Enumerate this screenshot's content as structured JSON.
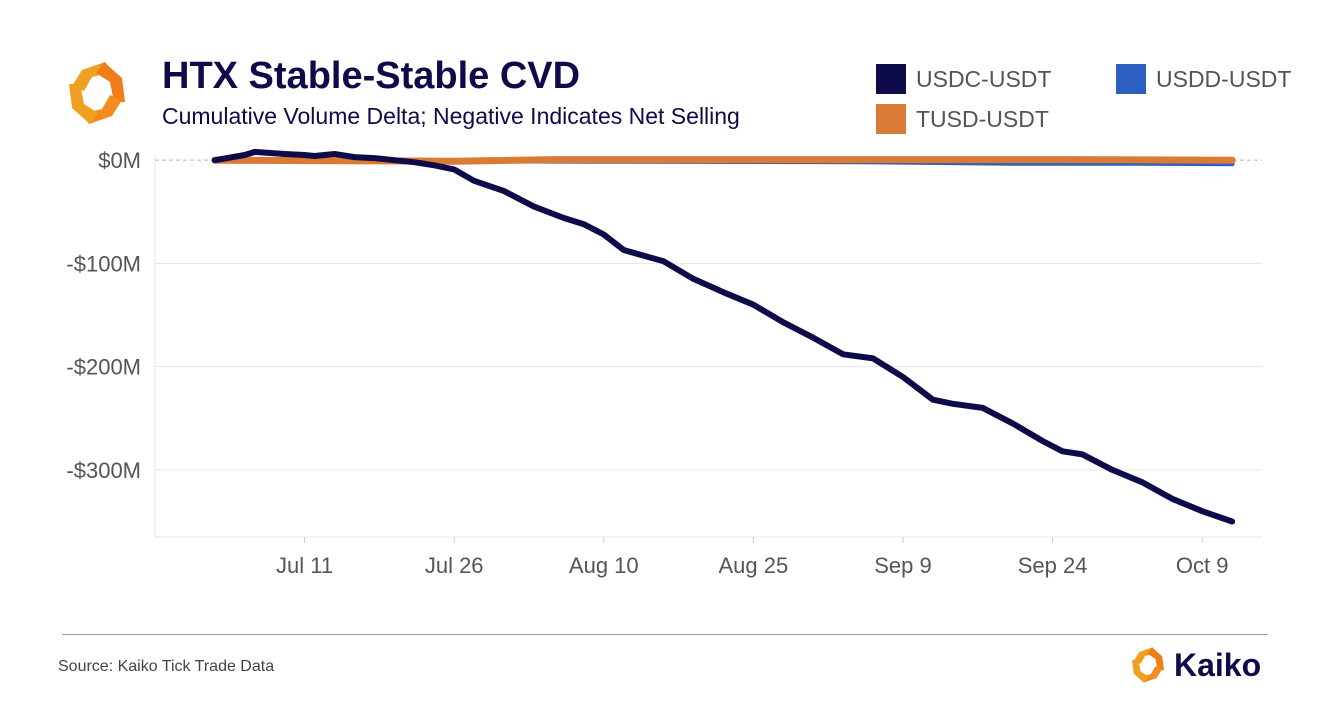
{
  "header": {
    "title": "HTX Stable-Stable CVD",
    "subtitle": "Cumulative Volume Delta; Negative Indicates Net Selling"
  },
  "legend": {
    "items": [
      {
        "label": "USDC-USDT",
        "color": "#0d0b4a"
      },
      {
        "label": "USDD-USDT",
        "color": "#2c5fbf"
      },
      {
        "label": "TUSD-USDT",
        "color": "#d97a35"
      }
    ]
  },
  "footer": {
    "source": "Source: Kaiko Tick Trade Data",
    "brand": "Kaiko",
    "logo_icon": "kaiko-logo-icon"
  },
  "chart_data": {
    "type": "line",
    "y_unit": "millions USD",
    "ylim": [
      -365,
      5
    ],
    "xlim": [
      "2023-06-26",
      "2023-10-15"
    ],
    "grid": true,
    "legend_position": "top-right",
    "y_ticks": [
      {
        "value": 0,
        "label": "$0M"
      },
      {
        "value": -100,
        "label": "-$100M"
      },
      {
        "value": -200,
        "label": "-$200M"
      },
      {
        "value": -300,
        "label": "-$300M"
      }
    ],
    "x_ticks": [
      {
        "date": "2023-07-11",
        "label": "Jul 11"
      },
      {
        "date": "2023-07-26",
        "label": "Jul 26"
      },
      {
        "date": "2023-08-10",
        "label": "Aug 10"
      },
      {
        "date": "2023-08-25",
        "label": "Aug 25"
      },
      {
        "date": "2023-09-09",
        "label": "Sep 9"
      },
      {
        "date": "2023-09-24",
        "label": "Sep 24"
      },
      {
        "date": "2023-10-09",
        "label": "Oct 9"
      }
    ],
    "series": [
      {
        "name": "USDD-USDT",
        "color": "#2c5fbf",
        "x": [
          "2023-07-02",
          "2023-07-20",
          "2023-08-10",
          "2023-09-05",
          "2023-09-20",
          "2023-10-03",
          "2023-10-12"
        ],
        "y": [
          0,
          -0.5,
          -1,
          -1.5,
          -3,
          -3,
          -3.5
        ]
      },
      {
        "name": "TUSD-USDT",
        "color": "#d97a35",
        "x": [
          "2023-07-02",
          "2023-07-15",
          "2023-07-26",
          "2023-08-05",
          "2023-08-20",
          "2023-09-10",
          "2023-09-25",
          "2023-10-12"
        ],
        "y": [
          0,
          -0.5,
          -1,
          0.5,
          0.5,
          0.5,
          0.5,
          0
        ]
      },
      {
        "name": "USDC-USDT",
        "color": "#0d0b4a",
        "x": [
          "2023-07-02",
          "2023-07-05",
          "2023-07-06",
          "2023-07-09",
          "2023-07-11",
          "2023-07-12",
          "2023-07-14",
          "2023-07-16",
          "2023-07-18",
          "2023-07-20",
          "2023-07-22",
          "2023-07-24",
          "2023-07-26",
          "2023-07-28",
          "2023-07-31",
          "2023-08-03",
          "2023-08-06",
          "2023-08-08",
          "2023-08-10",
          "2023-08-12",
          "2023-08-16",
          "2023-08-19",
          "2023-08-22",
          "2023-08-25",
          "2023-08-28",
          "2023-08-31",
          "2023-09-03",
          "2023-09-06",
          "2023-09-09",
          "2023-09-12",
          "2023-09-14",
          "2023-09-17",
          "2023-09-20",
          "2023-09-23",
          "2023-09-25",
          "2023-09-27",
          "2023-09-30",
          "2023-10-03",
          "2023-10-06",
          "2023-10-09",
          "2023-10-12"
        ],
        "y": [
          0,
          5,
          8,
          6,
          5,
          4,
          6,
          3,
          2,
          0,
          -2,
          -5,
          -9,
          -20,
          -30,
          -45,
          -56,
          -62,
          -72,
          -87,
          -98,
          -115,
          -128,
          -140,
          -157,
          -172,
          -188,
          -192,
          -210,
          -232,
          -236,
          -240,
          -255,
          -272,
          -282,
          -285,
          -300,
          -312,
          -328,
          -340,
          -350
        ]
      }
    ]
  }
}
